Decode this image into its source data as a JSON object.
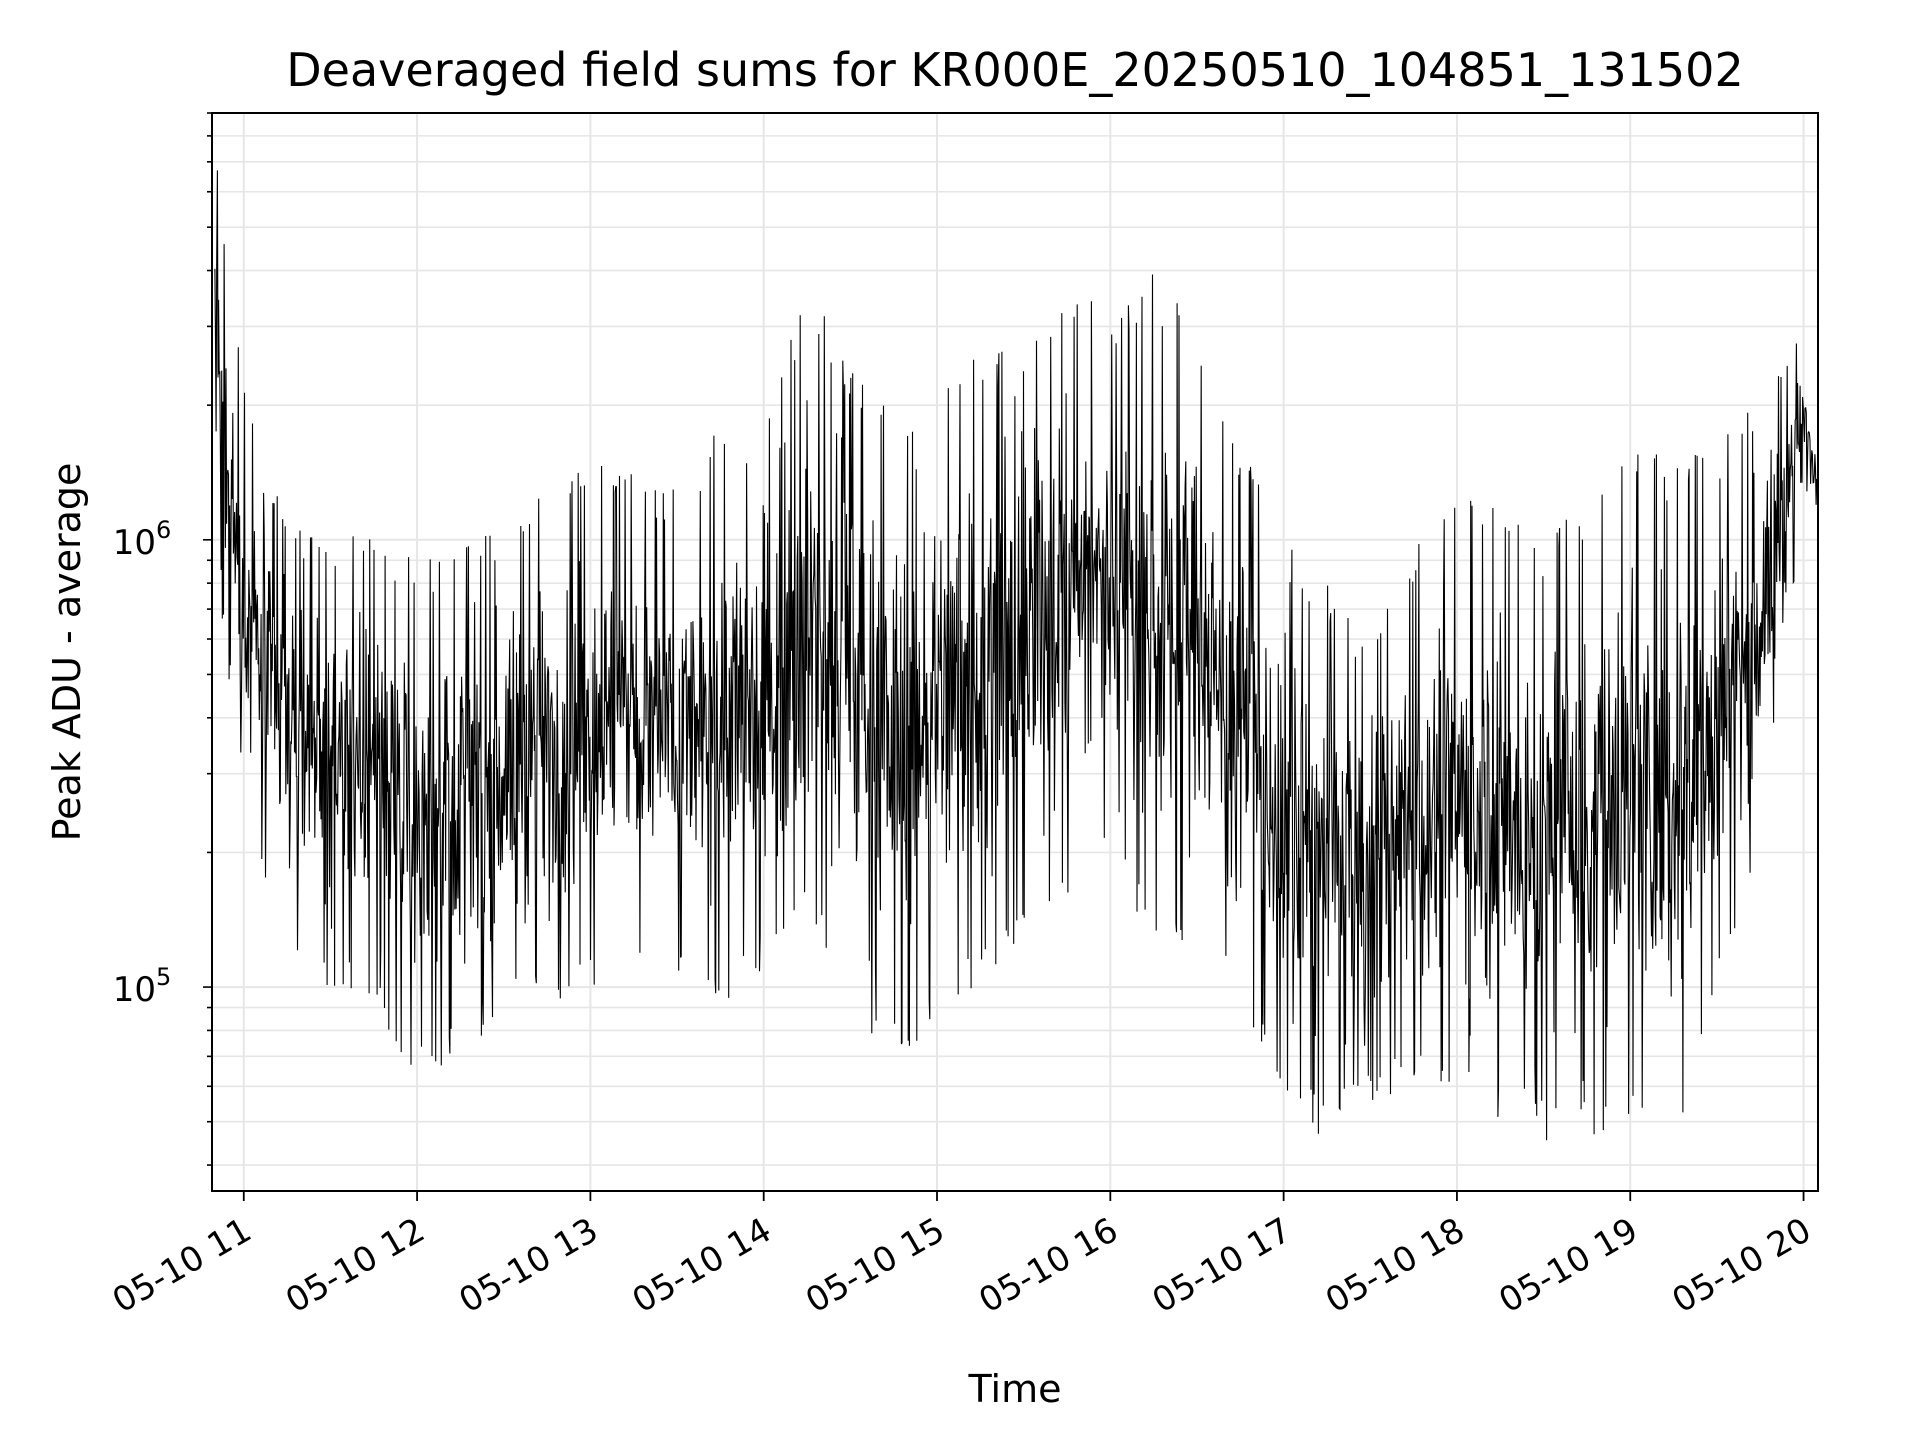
{
  "chart_data": {
    "type": "line",
    "title": "Deaveraged field sums for KR000E_20250510_104851_131502",
    "xlabel": "Time",
    "ylabel": "Peak ADU - average",
    "yscale": "log",
    "grid": true,
    "line_color": "#000000",
    "grid_color": "#e6e6e6",
    "x_range": [
      "2025-05-10 10:49",
      "2025-05-10 20:05"
    ],
    "ylim": [
      35000,
      9000000
    ],
    "x_ticks": [
      {
        "label": "05-10 11",
        "time": "2025-05-10 11:00"
      },
      {
        "label": "05-10 12",
        "time": "2025-05-10 12:00"
      },
      {
        "label": "05-10 13",
        "time": "2025-05-10 13:00"
      },
      {
        "label": "05-10 14",
        "time": "2025-05-10 14:00"
      },
      {
        "label": "05-10 15",
        "time": "2025-05-10 15:00"
      },
      {
        "label": "05-10 16",
        "time": "2025-05-10 16:00"
      },
      {
        "label": "05-10 17",
        "time": "2025-05-10 17:00"
      },
      {
        "label": "05-10 18",
        "time": "2025-05-10 18:00"
      },
      {
        "label": "05-10 19",
        "time": "2025-05-10 19:00"
      },
      {
        "label": "05-10 20",
        "time": "2025-05-10 20:00"
      }
    ],
    "y_ticks": [
      {
        "base": "10",
        "exp": "5",
        "value": 100000
      },
      {
        "base": "10",
        "exp": "6",
        "value": 1000000
      }
    ],
    "envelope": [
      {
        "time": "2025-05-10 10:50",
        "low": 900000,
        "high": 7500000
      },
      {
        "time": "2025-05-10 11:00",
        "low": 250000,
        "high": 2200000
      },
      {
        "time": "2025-05-10 11:15",
        "low": 110000,
        "high": 1100000
      },
      {
        "time": "2025-05-10 11:30",
        "low": 100000,
        "high": 1000000
      },
      {
        "time": "2025-05-10 11:45",
        "low": 90000,
        "high": 1050000
      },
      {
        "time": "2025-05-10 12:00",
        "low": 60000,
        "high": 900000
      },
      {
        "time": "2025-05-10 12:15",
        "low": 70000,
        "high": 1000000
      },
      {
        "time": "2025-05-10 12:30",
        "low": 85000,
        "high": 1100000
      },
      {
        "time": "2025-05-10 12:45",
        "low": 90000,
        "high": 1300000
      },
      {
        "time": "2025-05-10 13:00",
        "low": 100000,
        "high": 1500000
      },
      {
        "time": "2025-05-10 13:15",
        "low": 110000,
        "high": 1400000
      },
      {
        "time": "2025-05-10 13:30",
        "low": 100000,
        "high": 1300000
      },
      {
        "time": "2025-05-10 13:45",
        "low": 90000,
        "high": 1800000
      },
      {
        "time": "2025-05-10 14:00",
        "low": 110000,
        "high": 1800000
      },
      {
        "time": "2025-05-10 14:15",
        "low": 130000,
        "high": 3800000
      },
      {
        "time": "2025-05-10 14:30",
        "low": 90000,
        "high": 2500000
      },
      {
        "time": "2025-05-10 14:45",
        "low": 65000,
        "high": 2000000
      },
      {
        "time": "2025-05-10 15:00",
        "low": 80000,
        "high": 2500000
      },
      {
        "time": "2025-05-10 15:15",
        "low": 100000,
        "high": 2700000
      },
      {
        "time": "2025-05-10 15:30",
        "low": 120000,
        "high": 2600000
      },
      {
        "time": "2025-05-10 15:45",
        "low": 150000,
        "high": 3800000
      },
      {
        "time": "2025-05-10 16:00",
        "low": 200000,
        "high": 3200000
      },
      {
        "time": "2025-05-10 16:15",
        "low": 110000,
        "high": 4000000
      },
      {
        "time": "2025-05-10 16:30",
        "low": 130000,
        "high": 3000000
      },
      {
        "time": "2025-05-10 16:45",
        "low": 90000,
        "high": 1700000
      },
      {
        "time": "2025-05-10 17:00",
        "low": 55000,
        "high": 1000000
      },
      {
        "time": "2025-05-10 17:15",
        "low": 45000,
        "high": 800000
      },
      {
        "time": "2025-05-10 17:30",
        "low": 55000,
        "high": 600000
      },
      {
        "time": "2025-05-10 17:45",
        "low": 60000,
        "high": 1000000
      },
      {
        "time": "2025-05-10 18:00",
        "low": 55000,
        "high": 1300000
      },
      {
        "time": "2025-05-10 18:15",
        "low": 50000,
        "high": 1200000
      },
      {
        "time": "2025-05-10 18:30",
        "low": 45000,
        "high": 1000000
      },
      {
        "time": "2025-05-10 18:45",
        "low": 45000,
        "high": 1300000
      },
      {
        "time": "2025-05-10 19:00",
        "low": 48000,
        "high": 1600000
      },
      {
        "time": "2025-05-10 19:15",
        "low": 42000,
        "high": 1600000
      },
      {
        "time": "2025-05-10 19:30",
        "low": 100000,
        "high": 1600000
      },
      {
        "time": "2025-05-10 19:45",
        "low": 200000,
        "high": 2200000
      },
      {
        "time": "2025-05-10 20:00",
        "low": 1100000,
        "high": 2900000
      },
      {
        "time": "2025-05-10 20:05",
        "low": 1200000,
        "high": 1600000
      }
    ]
  }
}
